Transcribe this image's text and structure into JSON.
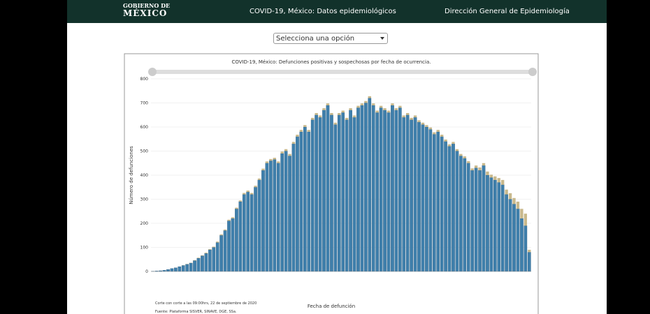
{
  "header": {
    "logo_top": "GOBIERNO DE",
    "logo_bottom": "MÉXICO",
    "title": "COVID-19, México: Datos epidemiológicos",
    "agency": "Dirección General de Epidemiología"
  },
  "select": {
    "placeholder": "Selecciona una opción"
  },
  "chart_data": {
    "type": "bar",
    "stacked": true,
    "title": "COVID-19, México: Defunciones positivas y sospechosas por fecha de ocurrencia.",
    "y_label": "Número de defunciones",
    "x_label": "Fecha de defunción",
    "notes": [
      "Corte con corte a las 09:00hrs, 22 de septiembre de 2020",
      "Fuente: Plataforma SISVER, SINAVE, DGE, SSa."
    ],
    "ylim": [
      0,
      800
    ],
    "yticks": [
      0,
      100,
      200,
      300,
      400,
      500,
      600,
      700,
      800
    ],
    "grid": true,
    "categories": [
      null,
      null,
      null,
      null,
      null,
      null,
      null,
      null,
      null,
      null,
      null,
      null,
      null,
      null,
      null,
      null,
      null,
      null,
      null,
      null,
      null,
      null,
      null,
      null,
      null,
      null,
      null,
      null,
      null,
      null,
      null,
      null,
      null,
      null,
      null,
      null,
      null,
      null,
      null,
      null,
      null,
      null,
      null,
      null,
      null,
      null,
      null,
      null,
      null,
      null,
      null,
      null,
      null,
      null,
      null,
      null,
      null,
      null,
      null,
      null,
      null,
      null,
      null,
      null,
      null,
      null,
      null,
      null,
      null,
      null,
      null,
      null,
      null,
      null,
      null,
      null,
      null,
      null,
      null,
      null,
      null,
      null,
      null,
      null,
      null,
      null,
      null,
      null,
      null,
      null,
      null,
      null,
      null,
      null,
      null,
      null,
      null,
      null,
      null,
      null
    ],
    "series": [
      {
        "color": "#3f7fab",
        "values": [
          1,
          2,
          3,
          5,
          8,
          12,
          15,
          20,
          25,
          30,
          35,
          45,
          55,
          65,
          75,
          90,
          100,
          120,
          150,
          170,
          210,
          220,
          260,
          290,
          320,
          330,
          320,
          350,
          380,
          420,
          450,
          460,
          465,
          450,
          490,
          500,
          480,
          530,
          560,
          580,
          600,
          580,
          630,
          650,
          640,
          670,
          690,
          650,
          610,
          650,
          660,
          630,
          670,
          640,
          680,
          690,
          700,
          720,
          690,
          660,
          680,
          670,
          660,
          690,
          670,
          680,
          640,
          650,
          630,
          640,
          620,
          610,
          600,
          590,
          570,
          580,
          560,
          540,
          520,
          530,
          500,
          480,
          470,
          450,
          420,
          430,
          420,
          440,
          400,
          390,
          380,
          370,
          360,
          320,
          300,
          280,
          260,
          220,
          190,
          80
        ]
      },
      {
        "color": "#c9b98c",
        "values": [
          0,
          0,
          0,
          0,
          0,
          0,
          0,
          0,
          1,
          1,
          1,
          2,
          2,
          2,
          3,
          3,
          3,
          4,
          4,
          4,
          5,
          5,
          5,
          5,
          6,
          6,
          6,
          6,
          6,
          7,
          7,
          7,
          7,
          7,
          8,
          8,
          8,
          8,
          8,
          8,
          8,
          8,
          8,
          8,
          8,
          8,
          8,
          8,
          8,
          8,
          8,
          8,
          8,
          8,
          8,
          8,
          8,
          8,
          8,
          8,
          8,
          8,
          8,
          8,
          8,
          8,
          8,
          8,
          8,
          8,
          8,
          8,
          8,
          8,
          8,
          8,
          8,
          8,
          8,
          8,
          8,
          8,
          8,
          8,
          8,
          10,
          12,
          10,
          15,
          12,
          15,
          18,
          20,
          20,
          25,
          25,
          30,
          40,
          50,
          10
        ]
      }
    ]
  }
}
